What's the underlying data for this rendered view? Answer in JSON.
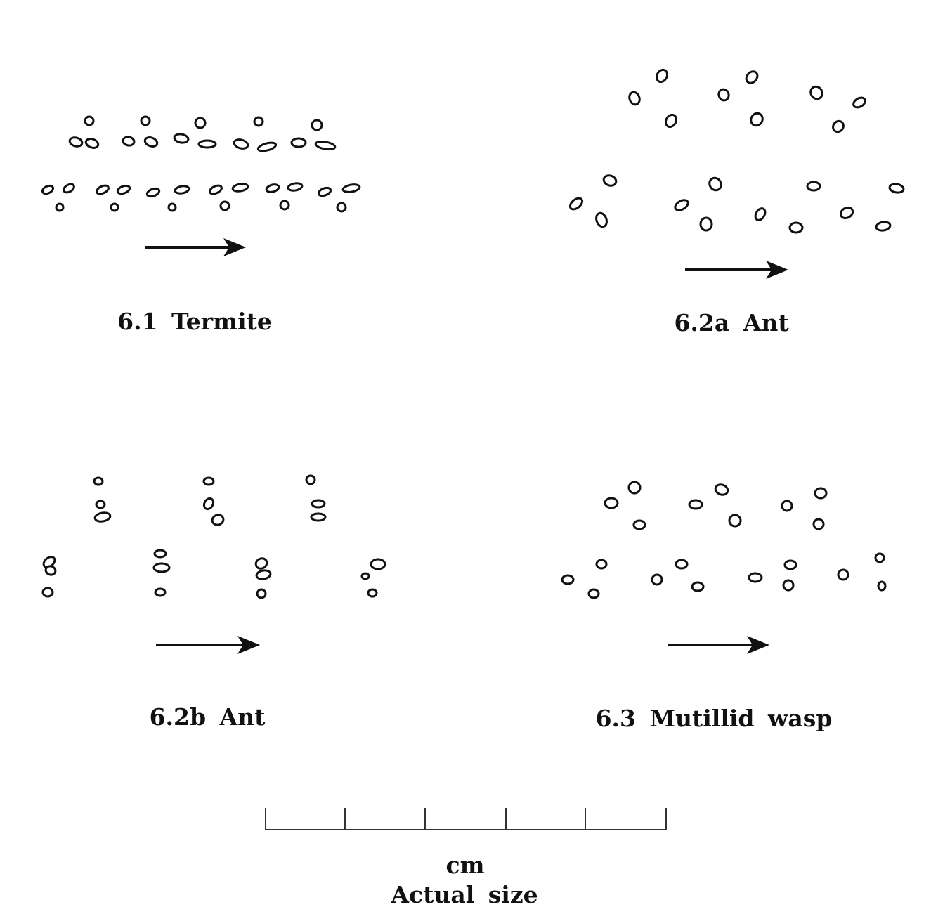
{
  "figures": [
    {
      "label": "6.1 Termite"
    },
    {
      "label": "6.2a Ant"
    },
    {
      "label": "6.2b Ant"
    },
    {
      "label": "6.3 Mutillid wasp"
    }
  ],
  "scale": {
    "unit": "cm",
    "caption": "Actual size"
  }
}
